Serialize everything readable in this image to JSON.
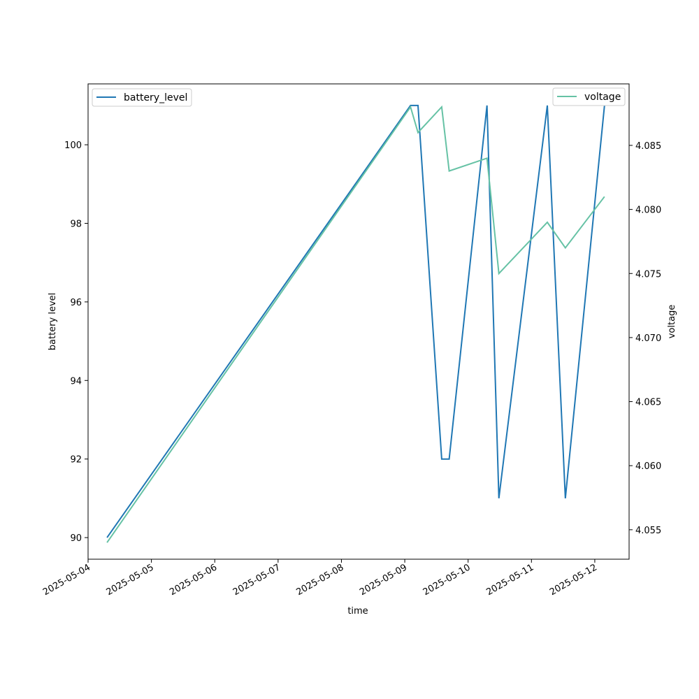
{
  "chart_data": {
    "type": "line",
    "title": "",
    "xlabel": "time",
    "ylabel_left": "battery level",
    "ylabel_right": "voltage",
    "x_ticks": [
      "2025-05-04",
      "2025-05-05",
      "2025-05-06",
      "2025-05-07",
      "2025-05-08",
      "2025-05-09",
      "2025-05-10",
      "2025-05-11",
      "2025-05-12"
    ],
    "y_left_ticks": [
      90,
      92,
      94,
      96,
      98,
      100
    ],
    "y_right_ticks": [
      "4.055",
      "4.060",
      "4.065",
      "4.070",
      "4.075",
      "4.080",
      "4.085"
    ],
    "xlim": [
      "2025-05-04T00:00",
      "2025-05-12T13:00"
    ],
    "ylim_left": [
      89.45,
      101.55
    ],
    "ylim_right": [
      4.0527,
      4.0898
    ],
    "series": [
      {
        "name": "battery_level",
        "axis": "left",
        "color": "#1f77b4",
        "points": [
          [
            "2025-05-04T07:10",
            90
          ],
          [
            "2025-05-09T02:10",
            101
          ],
          [
            "2025-05-09T05:00",
            101
          ],
          [
            "2025-05-09T14:00",
            92
          ],
          [
            "2025-05-09T16:50",
            92
          ],
          [
            "2025-05-10T07:10",
            101
          ],
          [
            "2025-05-10T11:40",
            91
          ],
          [
            "2025-05-11T06:00",
            101
          ],
          [
            "2025-05-11T12:50",
            91
          ],
          [
            "2025-05-12T03:40",
            101
          ]
        ]
      },
      {
        "name": "voltage",
        "axis": "right",
        "color": "#66c2a5",
        "points": [
          [
            "2025-05-04T07:10",
            4.054
          ],
          [
            "2025-05-09T02:10",
            4.088
          ],
          [
            "2025-05-09T05:00",
            4.086
          ],
          [
            "2025-05-09T14:00",
            4.088
          ],
          [
            "2025-05-09T16:50",
            4.083
          ],
          [
            "2025-05-10T07:10",
            4.084
          ],
          [
            "2025-05-10T11:40",
            4.075
          ],
          [
            "2025-05-11T06:00",
            4.079
          ],
          [
            "2025-05-11T12:50",
            4.077
          ],
          [
            "2025-05-12T03:40",
            4.081
          ]
        ]
      }
    ],
    "legend_left": {
      "placement": "top-left",
      "label": "battery_level"
    },
    "legend_right": {
      "placement": "top-right",
      "label": "voltage"
    },
    "grid": false
  }
}
